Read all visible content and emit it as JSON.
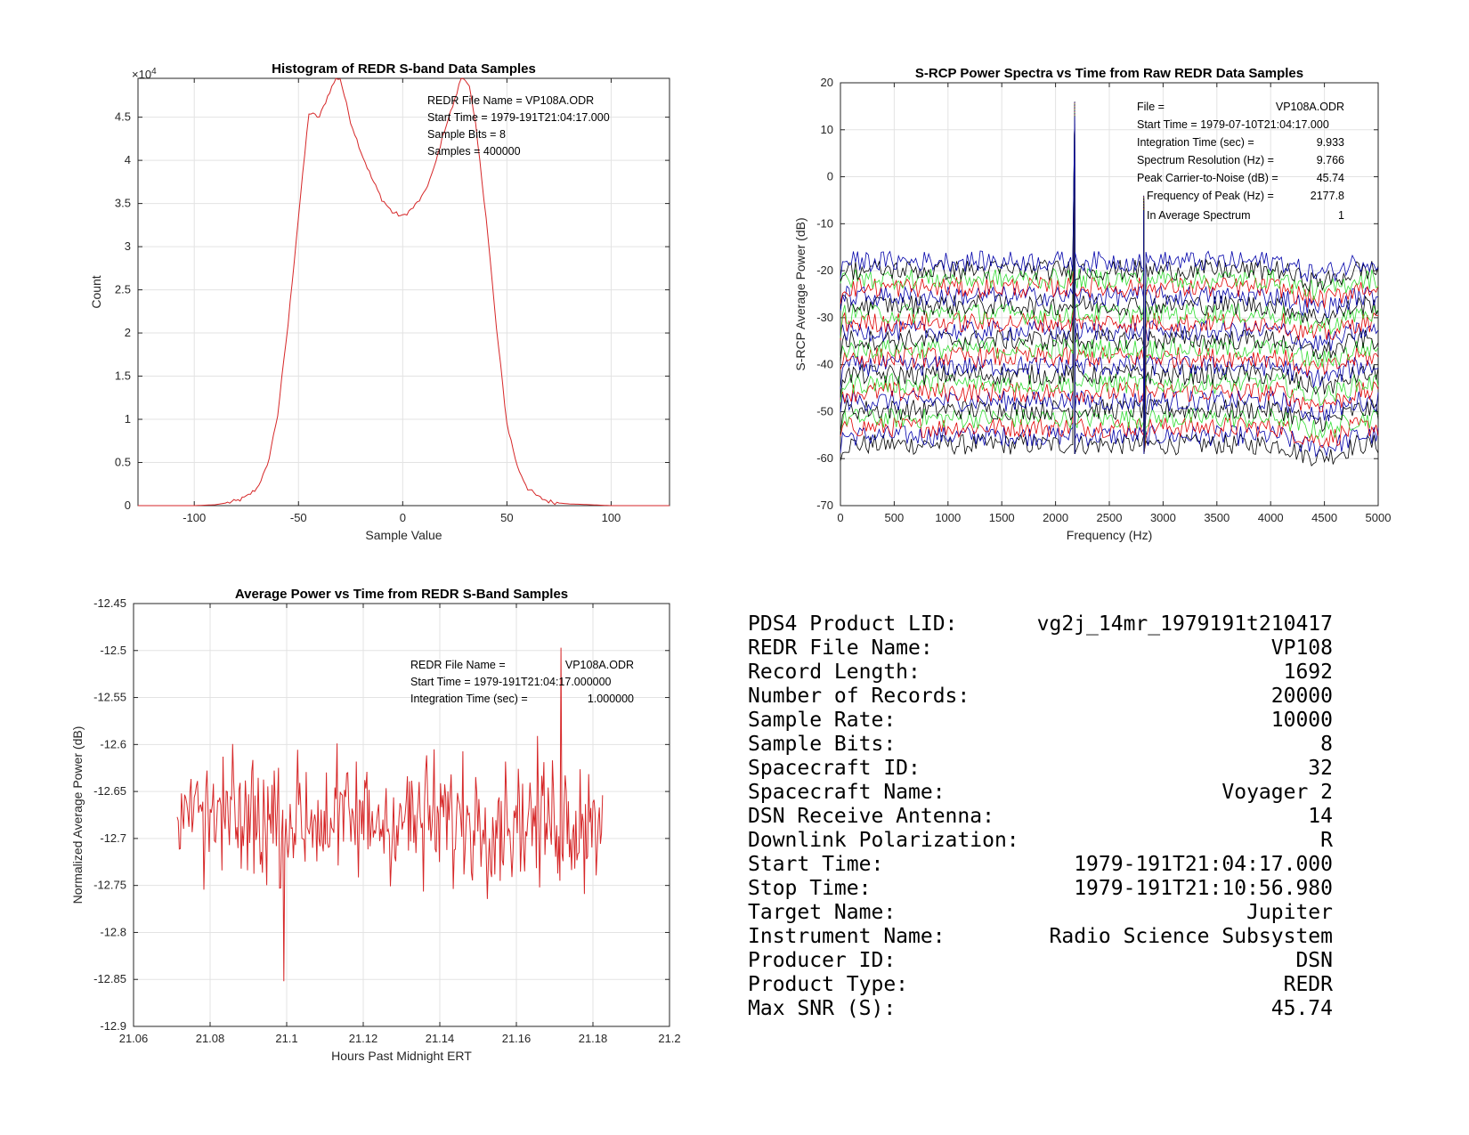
{
  "colors": {
    "histogram": "#d62728",
    "power": "#d62728",
    "spectra": [
      "#000000",
      "#0000aa",
      "#e00000",
      "#33dd33"
    ],
    "grid": "#e3e3e3",
    "axis": "#262626"
  },
  "chart_data": [
    {
      "type": "line",
      "title": "Histogram of REDR S-band Data Samples",
      "xlabel": "Sample Value",
      "ylabel": "Count",
      "exponent_label": "×10",
      "exponent_power": "4",
      "xlim": [
        -127,
        128
      ],
      "ylim": [
        0,
        4.95
      ],
      "xticks": [
        -100,
        -50,
        0,
        50,
        100
      ],
      "yticks": [
        0,
        0.5,
        1,
        1.5,
        2,
        2.5,
        3,
        3.5,
        4,
        4.5
      ],
      "series": [
        {
          "x": [
            -127,
            -100,
            -90,
            -80,
            -75,
            -70,
            -65,
            -60,
            -55,
            -50,
            -45,
            -40,
            -35,
            -32,
            -30,
            -28,
            -25,
            -20,
            -15,
            -10,
            -5,
            0,
            5,
            10,
            15,
            20,
            25,
            28,
            30,
            32,
            35,
            40,
            45,
            50,
            55,
            60,
            65,
            70,
            75,
            80,
            90,
            100,
            128
          ],
          "values": [
            0,
            0,
            0.01,
            0.05,
            0.1,
            0.2,
            0.45,
            1.05,
            2.1,
            3.35,
            4.55,
            4.5,
            4.8,
            4.95,
            4.95,
            4.75,
            4.45,
            4.1,
            3.8,
            3.55,
            3.4,
            3.35,
            3.45,
            3.6,
            3.9,
            4.35,
            4.7,
            4.95,
            4.95,
            4.85,
            4.4,
            3.35,
            2.05,
            0.95,
            0.45,
            0.2,
            0.1,
            0.05,
            0.03,
            0.02,
            0.01,
            0,
            0
          ]
        }
      ],
      "annotations": [
        "REDR File Name = VP108A.ODR",
        "Start Time = 1979-191T21:04:17.000",
        "Sample Bits = 8",
        "Samples = 400000"
      ]
    },
    {
      "type": "line",
      "title": "S-RCP Power Spectra vs Time from Raw REDR Data Samples",
      "xlabel": "Frequency (Hz)",
      "ylabel": "S-RCP Average Power (dB)",
      "xlim": [
        0,
        5000
      ],
      "ylim": [
        -70,
        20
      ],
      "xticks": [
        0,
        500,
        1000,
        1500,
        2000,
        2500,
        3000,
        3500,
        4000,
        4500,
        5000
      ],
      "yticks": [
        -70,
        -60,
        -50,
        -40,
        -30,
        -20,
        -10,
        0,
        10,
        20
      ],
      "spectra_count": 22,
      "baseline_top_db": -18,
      "baseline_bottom_db": -57,
      "noise_amplitude_db": 2.2,
      "peaks": [
        {
          "freq_hz": 2177.8,
          "db": 16
        },
        {
          "freq_hz": 2820,
          "db": -4
        }
      ],
      "annotations": [
        {
          "label": "File =",
          "value": "VP108A.ODR"
        },
        {
          "label": "Start Time = 1979-07-10T21:04:17.000",
          "value": ""
        },
        {
          "label": "Integration Time (sec) =",
          "value": "9.933"
        },
        {
          "label": "Spectrum Resolution (Hz) =",
          "value": "9.766"
        },
        {
          "label": "Peak Carrier-to-Noise (dB) =",
          "value": "45.74"
        },
        {
          "label": "Frequency of Peak (Hz) =",
          "value": "2177.8"
        },
        {
          "label": "In Average Spectrum",
          "value": "1"
        }
      ]
    },
    {
      "type": "line",
      "title": "Average Power vs Time from REDR S-Band Samples",
      "xlabel": "Hours Past Midnight ERT",
      "ylabel": "Normalized Average Power (dB)",
      "xlim": [
        21.06,
        21.2
      ],
      "ylim": [
        -12.9,
        -12.45
      ],
      "xticks": [
        21.06,
        21.08,
        21.1,
        21.12,
        21.14,
        21.16,
        21.18,
        21.2
      ],
      "yticks": [
        -12.9,
        -12.85,
        -12.8,
        -12.75,
        -12.7,
        -12.65,
        -12.6,
        -12.55,
        -12.5,
        -12.45
      ],
      "time_range": [
        21.0714,
        21.1825
      ],
      "samples": 400,
      "mean": -12.68,
      "spread": 0.055,
      "max": -12.497,
      "min": -12.852,
      "annotations": [
        {
          "label": "REDR File Name =",
          "value": "VP108A.ODR"
        },
        {
          "label": "Start Time = 1979-191T21:04:17.000000",
          "value": ""
        },
        {
          "label": "Integration Time (sec) =",
          "value": "1.000000"
        }
      ]
    }
  ],
  "info_table": [
    {
      "label": "PDS4 Product LID:",
      "value": "vg2j_14mr_1979191t210417"
    },
    {
      "label": "REDR File Name:",
      "value": "VP108"
    },
    {
      "label": "Record Length:",
      "value": "1692"
    },
    {
      "label": "Number of Records:",
      "value": "20000"
    },
    {
      "label": "Sample Rate:",
      "value": "10000"
    },
    {
      "label": "Sample Bits:",
      "value": "8"
    },
    {
      "label": "Spacecraft ID:",
      "value": "32"
    },
    {
      "label": "Spacecraft Name:",
      "value": "Voyager 2"
    },
    {
      "label": "DSN Receive Antenna:",
      "value": "14"
    },
    {
      "label": "Downlink Polarization:",
      "value": "R"
    },
    {
      "label": "Start Time:",
      "value": "1979-191T21:04:17.000"
    },
    {
      "label": "Stop Time:",
      "value": "1979-191T21:10:56.980"
    },
    {
      "label": "Target Name:",
      "value": "Jupiter"
    },
    {
      "label": "Instrument Name:",
      "value": "Radio Science Subsystem"
    },
    {
      "label": "Producer ID:",
      "value": "DSN"
    },
    {
      "label": "Product Type:",
      "value": "REDR"
    },
    {
      "label": "Max SNR (S):",
      "value": "45.74"
    }
  ]
}
